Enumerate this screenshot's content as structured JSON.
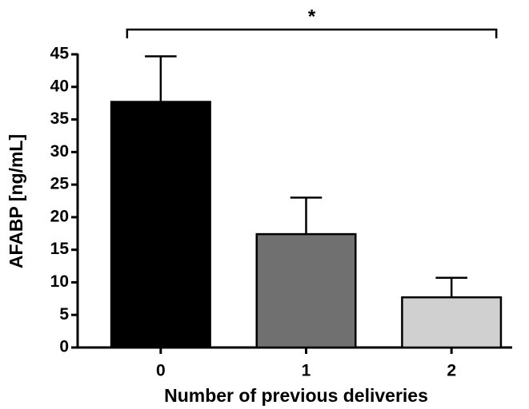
{
  "chart_data": {
    "type": "bar",
    "categories": [
      "0",
      "1",
      "2"
    ],
    "values": [
      37.7,
      17.4,
      7.7
    ],
    "errors": [
      7.0,
      5.6,
      3.0
    ],
    "colors": [
      "#000000",
      "#707070",
      "#d0d0d0"
    ],
    "xlabel": "Number of previous deliveries",
    "ylabel": "AFABP [ng/mL]",
    "annotation": "*",
    "ylim": [
      0,
      45
    ],
    "yticks": [
      0,
      5,
      10,
      15,
      20,
      25,
      30,
      35,
      40,
      45
    ],
    "grid": false
  }
}
